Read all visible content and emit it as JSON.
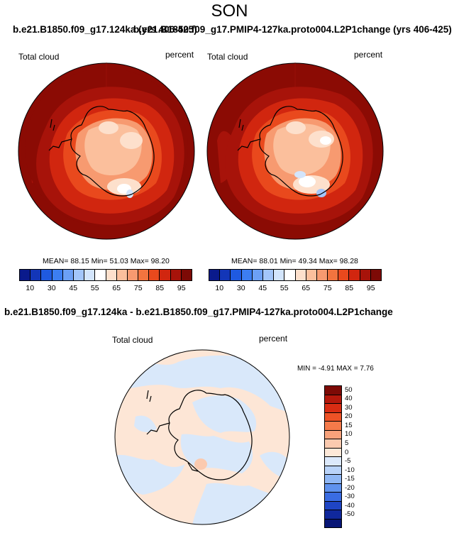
{
  "season": "SON",
  "left_panel": {
    "title": "b.e21.B1850.f09_g17.124ka (yrs 406-425)",
    "variable": "Total cloud",
    "units": "percent",
    "stats": "MEAN=  88.15  Min=  51.03  Max=  98.20"
  },
  "right_panel": {
    "title": "b.e21.B1850.f09_g17.PMIP4-127ka.proto004.L2P1change (yrs 406-425)",
    "variable": "Total cloud",
    "units": "percent",
    "stats": "MEAN=  88.01  Min=  49.34  Max=  98.28"
  },
  "abs_colorbar": {
    "ticks": [
      "10",
      "30",
      "45",
      "55",
      "65",
      "75",
      "85",
      "95"
    ],
    "colors": [
      "#0a1a8c",
      "#1336b8",
      "#1f5ae0",
      "#3c7ef2",
      "#6ca0f5",
      "#a3c6fa",
      "#d3e5fc",
      "#ffffff",
      "#fde0cc",
      "#fbbf9c",
      "#f79a70",
      "#f2743f",
      "#e9491d",
      "#d1260f",
      "#a7130a",
      "#7d0a06"
    ]
  },
  "diff_panel": {
    "title": "b.e21.B1850.f09_g17.124ka - b.e21.B1850.f09_g17.PMIP4-127ka.proto004.L2P1change",
    "variable": "Total cloud",
    "units": "percent",
    "stats": "MIN =  -4.91  MAX =   7.76"
  },
  "diff_colorbar": {
    "labels": [
      "50",
      "40",
      "30",
      "20",
      "15",
      "10",
      "5",
      "0",
      "-5",
      "-10",
      "-15",
      "-20",
      "-30",
      "-40",
      "-50"
    ],
    "colors": [
      "#7d0a06",
      "#b5180c",
      "#d92c13",
      "#ee5226",
      "#f57a4a",
      "#f8a27b",
      "#fbcaaf",
      "#fde8d8",
      "#dce9fb",
      "#b9d3f9",
      "#8fb7f5",
      "#5f92ee",
      "#3a6ce2",
      "#1f45c4",
      "#10289c",
      "#081676"
    ]
  },
  "colors": {
    "ocean_high": "#8b0b04",
    "land_light": "#fde8d8",
    "diff_pos": "#fde6d6",
    "diff_neg": "#d9e8fa"
  }
}
